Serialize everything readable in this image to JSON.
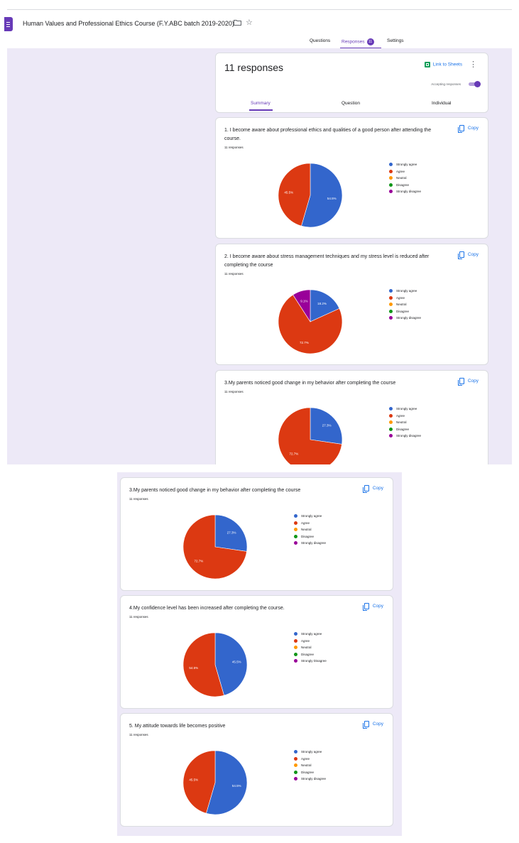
{
  "header": {
    "title": "Human Values and Professional Ethics Course (F.Y.ABC batch 2019-2020)",
    "tabs": {
      "questions": "Questions",
      "responses": "Responses",
      "settings": "Settings"
    },
    "response_count_badge": "11"
  },
  "summary": {
    "responses_title": "11 responses",
    "link_to_sheets": "Link to Sheets",
    "accepting_label": "Accepting responses",
    "accepting_on": true,
    "subtabs": {
      "summary": "Summary",
      "question": "Question",
      "individual": "Individual"
    }
  },
  "copy_label": "Copy",
  "icons": [
    "forms-doc-icon",
    "folder-icon",
    "star-icon",
    "sheets-icon",
    "more-vert-icon",
    "copy-icon"
  ],
  "colors": {
    "accent": "#673ab7",
    "strongly_agree": "#3366cc",
    "agree": "#dc3912",
    "neutral": "#ff9900",
    "disagree": "#109618",
    "strongly_disagree": "#990099"
  },
  "questions": [
    {
      "title": "1. I become aware about professional ethics and qualities of a good person after attending the course.",
      "count": "11 responses",
      "legend": [
        "Strongly agree",
        "Agree",
        "Neutral",
        "Disagree",
        "Strongly disagree"
      ],
      "slice_labels": {
        "agree": "45.5%",
        "strongly_agree": "54.5%"
      }
    },
    {
      "title": "2. I become aware about stress management techniques and my stress level is reduced after completing the course",
      "count": "11 responses",
      "legend": [
        "Strongly agree",
        "Agree",
        "Neutral",
        "Disagree",
        "Strongly disagree"
      ],
      "slice_labels": {
        "agree": "72.7%",
        "strongly_agree": "18.2%",
        "strongly_disagree": "9.1%"
      }
    },
    {
      "title": "3.My parents noticed good change in my behavior after completing the course",
      "count": "11 responses",
      "legend": [
        "Strongly agree",
        "Agree",
        "Neutral",
        "Disagree",
        "Strongly disagree"
      ],
      "slice_labels": {
        "agree": "72.7%",
        "strongly_agree": "27.3%"
      }
    },
    {
      "title": "4.My confidence level has been increased after completing the course.",
      "count": "11 responses",
      "legend": [
        "Strongly agree",
        "Agree",
        "Neutral",
        "Disagree",
        "Strongly Disagree"
      ],
      "slice_labels": {
        "agree": "54.5%",
        "strongly_agree": "45.5%"
      }
    },
    {
      "title": "5. My attitude towards life becomes positive",
      "count": "11 responses",
      "legend": [
        "Strongly agree",
        "Agree",
        "Neutral",
        "Disagree",
        "Strongly disagree"
      ],
      "slice_labels": {
        "agree": "45.5%",
        "strongly_agree": "54.5%"
      }
    }
  ],
  "chart_data": [
    {
      "type": "pie",
      "categories": [
        "Strongly agree",
        "Agree",
        "Neutral",
        "Disagree",
        "Strongly disagree"
      ],
      "values": [
        54.5,
        45.5,
        0,
        0,
        0
      ]
    },
    {
      "type": "pie",
      "categories": [
        "Strongly agree",
        "Agree",
        "Neutral",
        "Disagree",
        "Strongly disagree"
      ],
      "values": [
        18.2,
        72.7,
        0,
        0,
        9.1
      ]
    },
    {
      "type": "pie",
      "categories": [
        "Strongly agree",
        "Agree",
        "Neutral",
        "Disagree",
        "Strongly disagree"
      ],
      "values": [
        27.3,
        72.7,
        0,
        0,
        0
      ]
    },
    {
      "type": "pie",
      "categories": [
        "Strongly agree",
        "Agree",
        "Neutral",
        "Disagree",
        "Strongly Disagree"
      ],
      "values": [
        45.5,
        54.5,
        0,
        0,
        0
      ]
    },
    {
      "type": "pie",
      "categories": [
        "Strongly agree",
        "Agree",
        "Neutral",
        "Disagree",
        "Strongly disagree"
      ],
      "values": [
        54.5,
        45.5,
        0,
        0,
        0
      ]
    }
  ]
}
